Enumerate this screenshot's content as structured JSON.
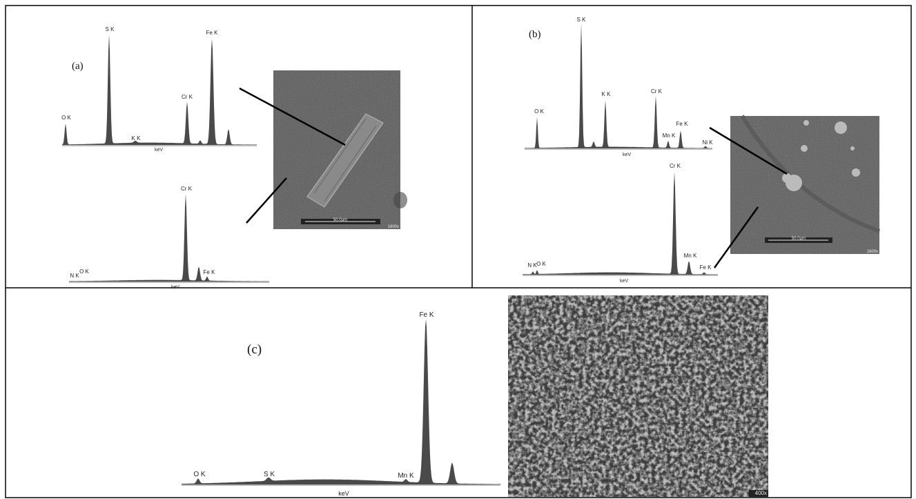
{
  "panels": [
    {
      "label": "(a)",
      "spectra": [
        {
          "peaks": [
            "O K",
            "S K",
            "K K",
            "Cr K",
            "Fe K"
          ],
          "axis": "keV"
        },
        {
          "peaks": [
            "N K",
            "O K",
            "Cr K",
            "Fe K"
          ],
          "axis": "keV"
        }
      ],
      "image": {
        "scale_bar": "50.0µm",
        "magnification": "1600x"
      }
    },
    {
      "label": "(b)",
      "spectra": [
        {
          "peaks": [
            "O K",
            "S K",
            "K K",
            "Cr K",
            "Mn K",
            "Fe K",
            "Ni K"
          ],
          "axis": "keV"
        },
        {
          "peaks": [
            "N K",
            "O K",
            "Cr K",
            "Mn K",
            "Fe K"
          ],
          "axis": "keV"
        }
      ],
      "image": {
        "scale_bar": "50.0µm",
        "magnification": "1600x"
      }
    },
    {
      "label": "(c)",
      "spectra": [
        {
          "peaks": [
            "O K",
            "S K",
            "Mn K",
            "Fe K"
          ],
          "axis": "keV"
        }
      ],
      "image": {
        "magnification": "400x"
      }
    }
  ]
}
